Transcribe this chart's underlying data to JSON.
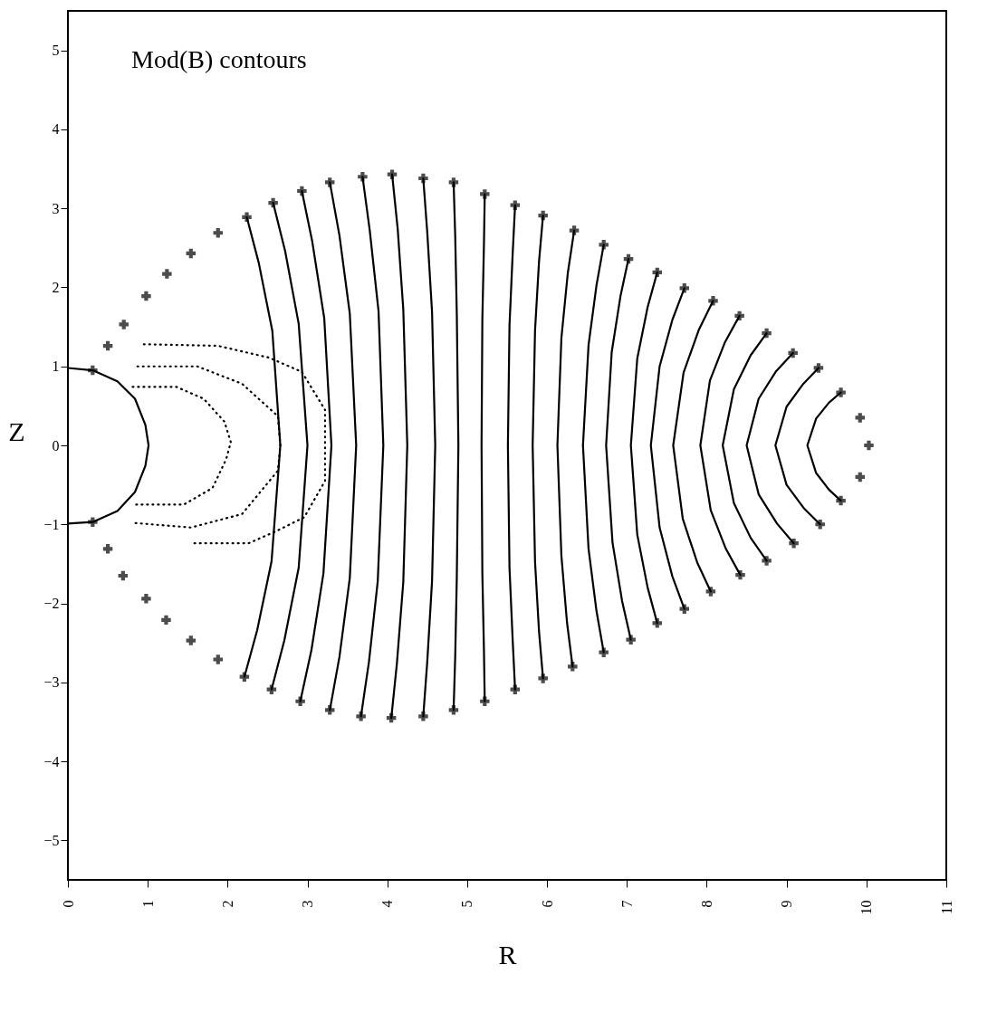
{
  "chart_data": {
    "type": "line",
    "xlabel": "R",
    "ylabel": "Z",
    "annotations": [
      "Mod(B) contours"
    ],
    "xlim": [
      0,
      11
    ],
    "ylim": [
      -5.5,
      5.5
    ],
    "xticks": [
      0,
      1,
      2,
      3,
      4,
      5,
      6,
      7,
      8,
      9,
      10,
      11
    ],
    "yticks": [
      -5,
      -4,
      -3,
      -2,
      -1,
      0,
      1,
      2,
      3,
      4,
      5
    ],
    "grid": false,
    "series": [
      {
        "type": "line",
        "line_style": "solid",
        "color": "#000000",
        "x": [
          0,
          0.31,
          0.62,
          0.84,
          0.97,
          1.01,
          0.97,
          0.84,
          0.62,
          0.31,
          0
        ],
        "values": [
          0.98,
          0.95,
          0.81,
          0.59,
          0.26,
          0,
          -0.26,
          -0.59,
          -0.83,
          -0.97,
          -0.99
        ]
      },
      {
        "type": "line",
        "line_style": "dotted",
        "color": "#000000",
        "x": [
          0.81,
          1.36,
          1.7,
          1.96,
          2.04,
          1.98,
          1.81,
          1.45,
          0.81
        ],
        "values": [
          0.74,
          0.74,
          0.59,
          0.3,
          0.04,
          -0.18,
          -0.54,
          -0.75,
          -0.75
        ]
      },
      {
        "type": "line",
        "line_style": "dotted",
        "color": "#000000",
        "x": [
          0.87,
          1.62,
          2.18,
          2.63,
          2.66,
          2.63,
          2.18,
          1.54,
          0.81
        ],
        "values": [
          1.0,
          1.0,
          0.78,
          0.37,
          0,
          -0.32,
          -0.87,
          -1.04,
          -0.98
        ]
      },
      {
        "type": "line",
        "line_style": "dotted",
        "color": "#000000",
        "x": [
          0.95,
          1.88,
          2.52,
          2.93,
          3.22,
          3.22,
          2.96,
          2.6,
          2.26,
          1.54
        ],
        "values": [
          1.28,
          1.26,
          1.11,
          0.93,
          0.45,
          -0.45,
          -0.91,
          -1.09,
          -1.24,
          -1.24
        ]
      },
      {
        "type": "line",
        "line_style": "solid",
        "color": "#000000",
        "x": [
          2.24,
          2.39,
          2.56,
          2.66,
          2.55,
          2.37,
          2.21
        ],
        "values": [
          2.89,
          2.31,
          1.45,
          0,
          -1.47,
          -2.34,
          -2.93
        ]
      },
      {
        "type": "line",
        "line_style": "solid",
        "color": "#000000",
        "x": [
          2.57,
          2.72,
          2.89,
          3.0,
          2.89,
          2.71,
          2.55
        ],
        "values": [
          3.07,
          2.46,
          1.54,
          0,
          -1.55,
          -2.47,
          -3.09
        ]
      },
      {
        "type": "line",
        "line_style": "solid",
        "color": "#000000",
        "x": [
          2.93,
          3.06,
          3.21,
          3.3,
          3.2,
          3.05,
          2.91
        ],
        "values": [
          3.22,
          2.58,
          1.61,
          0,
          -1.62,
          -2.59,
          -3.24
        ]
      },
      {
        "type": "line",
        "line_style": "solid",
        "color": "#000000",
        "x": [
          3.28,
          3.4,
          3.53,
          3.61,
          3.53,
          3.4,
          3.28
        ],
        "values": [
          3.33,
          2.66,
          1.67,
          0,
          -1.68,
          -2.68,
          -3.35
        ]
      },
      {
        "type": "line",
        "line_style": "solid",
        "color": "#000000",
        "x": [
          3.69,
          3.78,
          3.89,
          3.95,
          3.88,
          3.77,
          3.67
        ],
        "values": [
          3.4,
          2.72,
          1.7,
          0,
          -1.72,
          -2.74,
          -3.43
        ]
      },
      {
        "type": "line",
        "line_style": "solid",
        "color": "#000000",
        "x": [
          4.06,
          4.13,
          4.2,
          4.25,
          4.2,
          4.12,
          4.05
        ],
        "values": [
          3.43,
          2.74,
          1.72,
          0,
          -1.73,
          -2.76,
          -3.45
        ]
      },
      {
        "type": "line",
        "line_style": "solid",
        "color": "#000000",
        "x": [
          4.45,
          4.5,
          4.56,
          4.6,
          4.56,
          4.5,
          4.45
        ],
        "values": [
          3.38,
          2.7,
          1.69,
          0,
          -1.72,
          -2.74,
          -3.43
        ]
      },
      {
        "type": "line",
        "line_style": "solid",
        "color": "#000000",
        "x": [
          4.83,
          4.85,
          4.87,
          4.89,
          4.87,
          4.85,
          4.83
        ],
        "values": [
          3.33,
          2.66,
          1.67,
          0,
          -1.68,
          -2.68,
          -3.35
        ]
      },
      {
        "type": "line",
        "line_style": "solid",
        "color": "#000000",
        "x": [
          5.22,
          5.21,
          5.19,
          5.18,
          5.19,
          5.21,
          5.22
        ],
        "values": [
          3.18,
          2.54,
          1.59,
          0,
          -1.62,
          -2.59,
          -3.24
        ]
      },
      {
        "type": "line",
        "line_style": "solid",
        "color": "#000000",
        "x": [
          5.6,
          5.57,
          5.53,
          5.51,
          5.53,
          5.57,
          5.6
        ],
        "values": [
          3.04,
          2.43,
          1.52,
          0,
          -1.55,
          -2.47,
          -3.09
        ]
      },
      {
        "type": "line",
        "line_style": "solid",
        "color": "#000000",
        "x": [
          5.95,
          5.9,
          5.85,
          5.82,
          5.85,
          5.9,
          5.95
        ],
        "values": [
          2.91,
          2.33,
          1.46,
          0,
          -1.48,
          -2.36,
          -2.95
        ]
      },
      {
        "type": "line",
        "line_style": "solid",
        "color": "#000000",
        "x": [
          6.34,
          6.26,
          6.18,
          6.13,
          6.18,
          6.25,
          6.32
        ],
        "values": [
          2.72,
          2.18,
          1.36,
          0,
          -1.4,
          -2.24,
          -2.8
        ]
      },
      {
        "type": "line",
        "line_style": "solid",
        "color": "#000000",
        "x": [
          6.71,
          6.62,
          6.52,
          6.45,
          6.52,
          6.62,
          6.71
        ],
        "values": [
          2.54,
          2.03,
          1.27,
          0,
          -1.31,
          -2.1,
          -2.62
        ]
      },
      {
        "type": "line",
        "line_style": "solid",
        "color": "#000000",
        "x": [
          7.02,
          6.92,
          6.81,
          6.74,
          6.82,
          6.94,
          7.05
        ],
        "values": [
          2.36,
          1.89,
          1.18,
          0,
          -1.23,
          -1.97,
          -2.46
        ]
      },
      {
        "type": "line",
        "line_style": "solid",
        "color": "#000000",
        "x": [
          7.38,
          7.26,
          7.13,
          7.05,
          7.13,
          7.26,
          7.38
        ],
        "values": [
          2.19,
          1.75,
          1.1,
          0,
          -1.13,
          -1.8,
          -2.25
        ]
      },
      {
        "type": "line",
        "line_style": "solid",
        "color": "#000000",
        "x": [
          7.72,
          7.57,
          7.41,
          7.3,
          7.41,
          7.57,
          7.72
        ],
        "values": [
          1.99,
          1.59,
          1.0,
          0,
          -1.04,
          -1.66,
          -2.07
        ]
      },
      {
        "type": "line",
        "line_style": "solid",
        "color": "#000000",
        "x": [
          8.08,
          7.9,
          7.71,
          7.58,
          7.7,
          7.88,
          8.05
        ],
        "values": [
          1.83,
          1.46,
          0.92,
          0,
          -0.93,
          -1.48,
          -1.85
        ]
      },
      {
        "type": "line",
        "line_style": "solid",
        "color": "#000000",
        "x": [
          8.41,
          8.23,
          8.04,
          7.92,
          8.05,
          8.24,
          8.42
        ],
        "values": [
          1.64,
          1.31,
          0.82,
          0,
          -0.82,
          -1.31,
          -1.64
        ]
      },
      {
        "type": "line",
        "line_style": "solid",
        "color": "#000000",
        "x": [
          8.75,
          8.55,
          8.34,
          8.2,
          8.34,
          8.55,
          8.75
        ],
        "values": [
          1.42,
          1.14,
          0.71,
          0,
          -0.73,
          -1.17,
          -1.46
        ]
      },
      {
        "type": "line",
        "line_style": "solid",
        "color": "#000000",
        "x": [
          9.08,
          8.87,
          8.65,
          8.5,
          8.65,
          8.88,
          9.09
        ],
        "values": [
          1.17,
          0.94,
          0.59,
          0,
          -0.62,
          -0.99,
          -1.24
        ]
      },
      {
        "type": "line",
        "line_style": "solid",
        "color": "#000000",
        "x": [
          9.4,
          9.21,
          9.0,
          8.86,
          9.0,
          9.22,
          9.42
        ],
        "values": [
          0.98,
          0.78,
          0.49,
          0,
          -0.5,
          -0.8,
          -1.0
        ]
      },
      {
        "type": "line",
        "line_style": "solid",
        "color": "#000000",
        "x": [
          9.68,
          9.53,
          9.37,
          9.26,
          9.37,
          9.53,
          9.68
        ],
        "values": [
          0.67,
          0.54,
          0.34,
          0,
          -0.35,
          -0.56,
          -0.7
        ]
      },
      {
        "type": "scatter",
        "marker": "cross",
        "color": "#000000",
        "x": [
          0.31,
          0.5,
          0.7,
          0.98,
          1.24,
          1.54,
          1.88,
          2.24,
          2.57,
          2.93,
          3.28,
          3.69,
          4.06,
          4.45,
          4.83,
          5.22,
          5.6,
          5.95,
          6.34,
          6.71,
          7.02,
          7.38,
          7.72,
          8.08,
          8.41,
          8.75,
          9.08,
          9.4,
          9.68,
          9.92,
          10.03,
          9.92,
          9.68,
          9.42,
          9.09,
          8.75,
          8.42,
          8.05,
          7.72,
          7.38,
          7.05,
          6.71,
          6.32,
          5.95,
          5.6,
          5.22,
          4.83,
          4.45,
          4.05,
          3.67,
          3.28,
          2.91,
          2.55,
          2.21,
          1.88,
          1.54,
          1.23,
          0.98,
          0.69,
          0.5,
          0.31
        ],
        "values": [
          0.95,
          1.26,
          1.53,
          1.89,
          2.17,
          2.43,
          2.69,
          2.89,
          3.07,
          3.22,
          3.33,
          3.4,
          3.43,
          3.38,
          3.33,
          3.18,
          3.04,
          2.91,
          2.72,
          2.54,
          2.36,
          2.19,
          1.99,
          1.83,
          1.64,
          1.42,
          1.17,
          0.98,
          0.67,
          0.35,
          0,
          -0.4,
          -0.7,
          -1.0,
          -1.24,
          -1.46,
          -1.64,
          -1.85,
          -2.07,
          -2.25,
          -2.46,
          -2.62,
          -2.8,
          -2.95,
          -3.09,
          -3.24,
          -3.35,
          -3.43,
          -3.45,
          -3.43,
          -3.35,
          -3.24,
          -3.09,
          -2.93,
          -2.71,
          -2.47,
          -2.21,
          -1.94,
          -1.65,
          -1.31,
          -0.97
        ]
      }
    ]
  }
}
